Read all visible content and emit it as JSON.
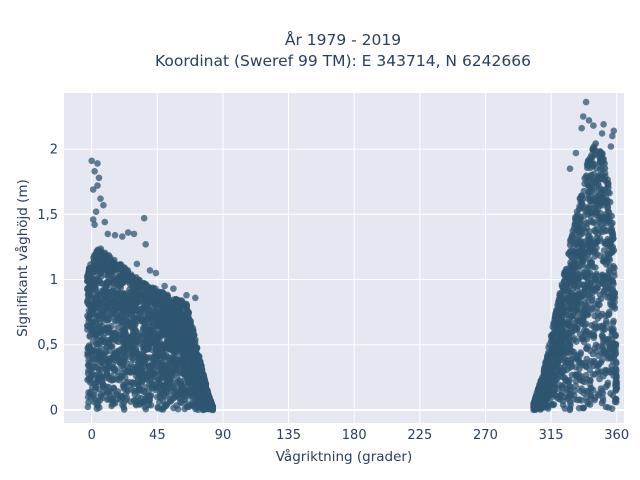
{
  "chart_data": {
    "type": "scatter",
    "title_line1": "År 1979 - 2019",
    "title_line2": "Koordinat (Sweref 99 TM): E 343714, N 6242666",
    "xlabel": "Vågriktning (grader)",
    "ylabel": "Signifikant våghöjd (m)",
    "xlim": [
      -19,
      365
    ],
    "ylim": [
      -0.1,
      2.43
    ],
    "x_ticks": [
      0,
      45,
      90,
      135,
      180,
      225,
      270,
      315,
      360
    ],
    "x_tick_labels": [
      "0",
      "45",
      "90",
      "135",
      "180",
      "225",
      "270",
      "315",
      "360"
    ],
    "y_ticks": [
      0,
      0.5,
      1,
      1.5,
      2
    ],
    "y_tick_labels": [
      "0",
      "0,5",
      "1",
      "1,5",
      "2"
    ],
    "grid": true,
    "marker_color": "#2f5570",
    "plot_background": "#e5e8f0",
    "clusters": [
      {
        "direction_range": [
          -3,
          83
        ],
        "profile": [
          {
            "x": -3,
            "y": 1.05
          },
          {
            "x": 0,
            "y": 1.15
          },
          {
            "x": 5,
            "y": 1.25
          },
          {
            "x": 10,
            "y": 1.2
          },
          {
            "x": 20,
            "y": 1.12
          },
          {
            "x": 30,
            "y": 1.02
          },
          {
            "x": 40,
            "y": 0.95
          },
          {
            "x": 50,
            "y": 0.9
          },
          {
            "x": 60,
            "y": 0.85
          },
          {
            "x": 65,
            "y": 0.82
          },
          {
            "x": 70,
            "y": 0.6
          },
          {
            "x": 75,
            "y": 0.35
          },
          {
            "x": 80,
            "y": 0.12
          },
          {
            "x": 83,
            "y": 0.03
          }
        ]
      },
      {
        "direction_range": [
          303,
          360
        ],
        "profile": [
          {
            "x": 303,
            "y": 0.05
          },
          {
            "x": 310,
            "y": 0.3
          },
          {
            "x": 320,
            "y": 0.85
          },
          {
            "x": 330,
            "y": 1.4
          },
          {
            "x": 340,
            "y": 1.9
          },
          {
            "x": 345,
            "y": 2.05
          },
          {
            "x": 350,
            "y": 2.0
          },
          {
            "x": 355,
            "y": 1.7
          },
          {
            "x": 358,
            "y": 1.3
          },
          {
            "x": 360,
            "y": 0.2
          }
        ]
      }
    ],
    "outliers": [
      {
        "x": 0,
        "y": 1.91
      },
      {
        "x": 2,
        "y": 1.83
      },
      {
        "x": 4,
        "y": 1.89
      },
      {
        "x": 5,
        "y": 1.78
      },
      {
        "x": 4,
        "y": 1.72
      },
      {
        "x": 1,
        "y": 1.69
      },
      {
        "x": 6,
        "y": 1.62
      },
      {
        "x": 8,
        "y": 1.57
      },
      {
        "x": 3,
        "y": 1.52
      },
      {
        "x": 1,
        "y": 1.46
      },
      {
        "x": 2,
        "y": 1.42
      },
      {
        "x": 9,
        "y": 1.44
      },
      {
        "x": 11,
        "y": 1.35
      },
      {
        "x": 16,
        "y": 1.34
      },
      {
        "x": 21,
        "y": 1.33
      },
      {
        "x": 25,
        "y": 1.36
      },
      {
        "x": 29,
        "y": 1.35
      },
      {
        "x": 36,
        "y": 1.47
      },
      {
        "x": 37,
        "y": 1.27
      },
      {
        "x": 31,
        "y": 1.12
      },
      {
        "x": 40,
        "y": 1.07
      },
      {
        "x": 44,
        "y": 1.05
      },
      {
        "x": 50,
        "y": 0.95
      },
      {
        "x": 56,
        "y": 0.93
      },
      {
        "x": 65,
        "y": 0.88
      },
      {
        "x": 71,
        "y": 0.86
      },
      {
        "x": 339,
        "y": 2.36
      },
      {
        "x": 337,
        "y": 2.25
      },
      {
        "x": 341,
        "y": 2.22
      },
      {
        "x": 336,
        "y": 2.16
      },
      {
        "x": 344,
        "y": 2.18
      },
      {
        "x": 351,
        "y": 2.19
      },
      {
        "x": 350,
        "y": 2.12
      },
      {
        "x": 357,
        "y": 2.1
      },
      {
        "x": 358,
        "y": 2.14
      },
      {
        "x": 356,
        "y": 2.02
      },
      {
        "x": 332,
        "y": 1.97
      },
      {
        "x": 328,
        "y": 1.85
      }
    ]
  }
}
